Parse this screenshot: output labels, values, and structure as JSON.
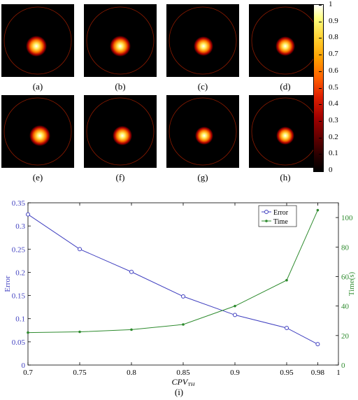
{
  "panels": [
    {
      "label": "(a)"
    },
    {
      "label": "(b)"
    },
    {
      "label": "(c)"
    },
    {
      "label": "(d)"
    },
    {
      "label": "(e)"
    },
    {
      "label": "(f)"
    },
    {
      "label": "(g)"
    },
    {
      "label": "(h)"
    }
  ],
  "colorbar": {
    "ticks": [
      "1",
      "0.9",
      "0.8",
      "0.7",
      "0.6",
      "0.5",
      "0.4",
      "0.3",
      "0.2",
      "0.1",
      "0"
    ],
    "colormap": "hot"
  },
  "chart_label": "(i)",
  "chart_data": {
    "type": "line",
    "x": [
      0.7,
      0.75,
      0.8,
      0.85,
      0.9,
      0.95,
      0.98
    ],
    "xlabel": "CPV",
    "xlabel_sub": "TH",
    "xticks": [
      "0.7",
      "0.75",
      "0.8",
      "0.85",
      "0.9",
      "0.95",
      "0.98",
      "1"
    ],
    "xlim": [
      0.7,
      1.0
    ],
    "ylabel_left": "Error",
    "ylabel_right": "Time(s)",
    "ylim_left": [
      0,
      0.35
    ],
    "ylim_right": [
      0,
      110
    ],
    "yticks_left": [
      "0",
      "0.05",
      "0.1",
      "0.15",
      "0.2",
      "0.25",
      "0.3",
      "0.35"
    ],
    "yticks_right": [
      "0",
      "20",
      "40",
      "60",
      "80",
      "100"
    ],
    "series": [
      {
        "name": "Error",
        "axis": "left",
        "color": "#4040c0",
        "marker": "circle",
        "values": [
          0.325,
          0.25,
          0.201,
          0.148,
          0.108,
          0.08,
          0.045
        ]
      },
      {
        "name": "Time",
        "axis": "right",
        "color": "#2e8b2e",
        "marker": "dot",
        "values": [
          22,
          22.5,
          24,
          27.5,
          40,
          57.5,
          105
        ]
      }
    ],
    "legend_position": "top-right",
    "grid": false
  }
}
